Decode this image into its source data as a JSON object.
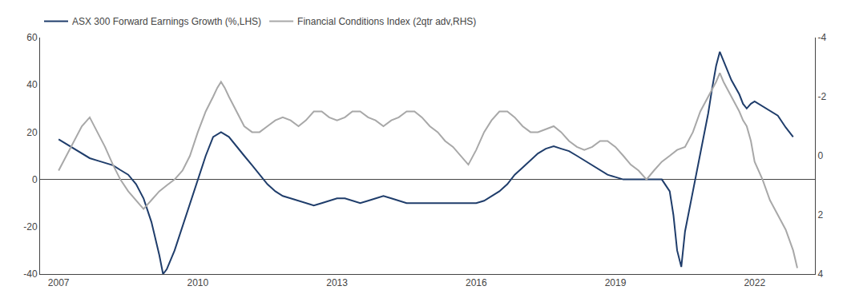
{
  "chart_data": {
    "type": "line",
    "xlim": [
      2006.6,
      2023.3
    ],
    "xticks": [
      2007,
      2010,
      2013,
      2016,
      2019,
      2022
    ],
    "ylim": [
      -40,
      60
    ],
    "yticks": [
      -40,
      -20,
      0,
      20,
      40,
      60
    ],
    "y2lim": [
      4,
      -4
    ],
    "y2ticks": [
      4,
      2,
      0,
      -2,
      -4
    ],
    "grid": false,
    "legend": "upper left",
    "series": [
      {
        "name": "ASX 300 Forward Earnings Growth (%,LHS)",
        "color": "#1f3d6b",
        "x": [
          2007.0,
          2007.17,
          2007.33,
          2007.5,
          2007.67,
          2007.83,
          2008.0,
          2008.17,
          2008.33,
          2008.5,
          2008.67,
          2008.83,
          2009.0,
          2009.17,
          2009.25,
          2009.33,
          2009.5,
          2009.67,
          2009.83,
          2010.0,
          2010.17,
          2010.33,
          2010.5,
          2010.67,
          2010.83,
          2011.0,
          2011.17,
          2011.33,
          2011.5,
          2011.67,
          2011.83,
          2012.0,
          2012.17,
          2012.33,
          2012.5,
          2012.67,
          2012.83,
          2013.0,
          2013.17,
          2013.33,
          2013.5,
          2013.67,
          2013.83,
          2014.0,
          2014.17,
          2014.33,
          2014.5,
          2014.67,
          2014.83,
          2015.0,
          2015.17,
          2015.33,
          2015.5,
          2015.67,
          2015.83,
          2016.0,
          2016.17,
          2016.33,
          2016.5,
          2016.67,
          2016.83,
          2017.0,
          2017.17,
          2017.33,
          2017.5,
          2017.67,
          2017.83,
          2018.0,
          2018.17,
          2018.33,
          2018.5,
          2018.67,
          2018.83,
          2019.0,
          2019.17,
          2019.33,
          2019.5,
          2019.67,
          2019.83,
          2020.0,
          2020.17,
          2020.25,
          2020.33,
          2020.42,
          2020.5,
          2020.67,
          2020.83,
          2021.0,
          2021.08,
          2021.17,
          2021.25,
          2021.33,
          2021.5,
          2021.67,
          2021.75,
          2021.83,
          2021.92,
          2022.0,
          2022.17,
          2022.33,
          2022.5,
          2022.67,
          2022.83
        ],
        "values": [
          17,
          15,
          13,
          11,
          9,
          8,
          7,
          6,
          4,
          2,
          -2,
          -8,
          -18,
          -32,
          -40,
          -38,
          -30,
          -20,
          -10,
          0,
          10,
          18,
          20,
          18,
          14,
          10,
          6,
          2,
          -2,
          -5,
          -7,
          -8,
          -9,
          -10,
          -11,
          -10,
          -9,
          -8,
          -8,
          -9,
          -10,
          -9,
          -8,
          -7,
          -8,
          -9,
          -10,
          -10,
          -10,
          -10,
          -10,
          -10,
          -10,
          -10,
          -10,
          -10,
          -9,
          -7,
          -5,
          -2,
          2,
          5,
          8,
          11,
          13,
          14,
          13,
          12,
          10,
          8,
          6,
          4,
          2,
          1,
          0,
          0,
          0,
          0,
          0,
          0,
          -5,
          -15,
          -30,
          -37,
          -22,
          -5,
          12,
          28,
          38,
          48,
          54,
          50,
          42,
          36,
          32,
          30,
          32,
          33,
          31,
          29,
          27,
          22,
          18
        ]
      },
      {
        "name": "Financial Conditions Index (2qtr adv,RHS)",
        "color": "#a8a8a8",
        "axis": "y2",
        "x": [
          2007.0,
          2007.17,
          2007.33,
          2007.5,
          2007.67,
          2007.83,
          2008.0,
          2008.17,
          2008.33,
          2008.5,
          2008.67,
          2008.83,
          2009.0,
          2009.17,
          2009.33,
          2009.5,
          2009.67,
          2009.83,
          2010.0,
          2010.17,
          2010.33,
          2010.42,
          2010.5,
          2010.58,
          2010.67,
          2010.83,
          2011.0,
          2011.17,
          2011.33,
          2011.5,
          2011.67,
          2011.83,
          2012.0,
          2012.17,
          2012.33,
          2012.5,
          2012.67,
          2012.83,
          2013.0,
          2013.17,
          2013.33,
          2013.5,
          2013.67,
          2013.83,
          2014.0,
          2014.17,
          2014.33,
          2014.5,
          2014.67,
          2014.83,
          2015.0,
          2015.17,
          2015.33,
          2015.5,
          2015.67,
          2015.83,
          2016.0,
          2016.17,
          2016.33,
          2016.5,
          2016.67,
          2016.83,
          2017.0,
          2017.17,
          2017.33,
          2017.5,
          2017.67,
          2017.83,
          2018.0,
          2018.17,
          2018.33,
          2018.5,
          2018.67,
          2018.83,
          2019.0,
          2019.17,
          2019.33,
          2019.5,
          2019.67,
          2019.83,
          2020.0,
          2020.17,
          2020.33,
          2020.5,
          2020.67,
          2020.83,
          2021.0,
          2021.17,
          2021.25,
          2021.33,
          2021.5,
          2021.67,
          2021.75,
          2021.83,
          2021.92,
          2022.0,
          2022.17,
          2022.33,
          2022.5,
          2022.67,
          2022.83,
          2022.92
        ],
        "values": [
          0.5,
          0.0,
          -0.5,
          -1.0,
          -1.3,
          -0.8,
          -0.3,
          0.3,
          0.8,
          1.2,
          1.5,
          1.8,
          1.5,
          1.2,
          1.0,
          0.8,
          0.5,
          0.0,
          -0.8,
          -1.5,
          -2.0,
          -2.3,
          -2.5,
          -2.3,
          -2.0,
          -1.5,
          -1.0,
          -0.8,
          -0.8,
          -1.0,
          -1.2,
          -1.3,
          -1.2,
          -1.0,
          -1.2,
          -1.5,
          -1.5,
          -1.3,
          -1.2,
          -1.3,
          -1.5,
          -1.5,
          -1.3,
          -1.2,
          -1.0,
          -1.2,
          -1.3,
          -1.5,
          -1.5,
          -1.3,
          -1.0,
          -0.8,
          -0.5,
          -0.3,
          0.0,
          0.3,
          -0.2,
          -0.8,
          -1.2,
          -1.5,
          -1.5,
          -1.3,
          -1.0,
          -0.8,
          -0.8,
          -0.9,
          -1.0,
          -0.8,
          -0.5,
          -0.3,
          -0.2,
          -0.3,
          -0.5,
          -0.5,
          -0.3,
          0.0,
          0.3,
          0.5,
          0.8,
          0.5,
          0.2,
          0.0,
          -0.2,
          -0.3,
          -0.8,
          -1.5,
          -2.0,
          -2.5,
          -2.8,
          -2.5,
          -2.0,
          -1.5,
          -1.2,
          -1.0,
          -0.5,
          0.2,
          0.8,
          1.5,
          2.0,
          2.5,
          3.2,
          3.8
        ]
      }
    ]
  }
}
